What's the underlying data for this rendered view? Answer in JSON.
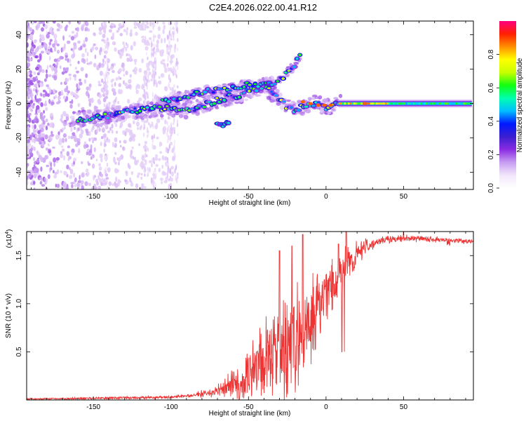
{
  "figure_title": "C2E4.2026.022.00.41.R12",
  "chart_data": [
    {
      "type": "heatmap",
      "title": "C2E4.2026.022.00.41.R12",
      "xlabel": "Height of straight line (km)",
      "ylabel": "Frequency (Hz)",
      "xlim": [
        -193,
        95
      ],
      "ylim": [
        -50,
        48
      ],
      "xticks": [
        -150,
        -100,
        -50,
        0,
        50
      ],
      "yticks": [
        -40,
        -20,
        0,
        20,
        40
      ],
      "xtick_labels": [
        "-150",
        "-100",
        "-50",
        "0",
        "50"
      ],
      "ytick_labels": [
        "-40",
        "-20",
        "0",
        "20",
        "40"
      ],
      "colorbar": {
        "label": "Normalized spectral amplitude",
        "range": [
          0,
          1
        ],
        "ticks": [
          0.0,
          0.2,
          0.4,
          0.6,
          0.8
        ],
        "tick_labels": [
          "0.0",
          "0.2",
          "0.4",
          "0.6",
          "0.8"
        ],
        "colors": [
          "#ffffff",
          "#f2e6fb",
          "#c89ef2",
          "#8a2be2",
          "#3a1fd0",
          "#0018ff",
          "#00bfff",
          "#00ffb0",
          "#10ff10",
          "#c8ff00",
          "#ffff00",
          "#ff9000",
          "#ff2000",
          "#ff0080"
        ]
      },
      "features": {
        "main_trace_points": [
          [
            -160,
            -9
          ],
          [
            -150,
            -9
          ],
          [
            -140,
            -7
          ],
          [
            -130,
            -5
          ],
          [
            -120,
            -4
          ],
          [
            -110,
            -3
          ],
          [
            -100,
            -3
          ],
          [
            -92,
            -4
          ],
          [
            -85,
            -3
          ],
          [
            -78,
            -1
          ],
          [
            -70,
            2
          ],
          [
            -62,
            4
          ],
          [
            -55,
            5
          ],
          [
            -48,
            8
          ],
          [
            -40,
            10
          ],
          [
            -35,
            6
          ],
          [
            -30,
            2
          ],
          [
            -25,
            -2
          ],
          [
            -20,
            -4
          ],
          [
            -15,
            -2
          ],
          [
            -10,
            0
          ],
          [
            -5,
            0
          ],
          [
            0,
            -2
          ],
          [
            5,
            -1
          ],
          [
            8,
            0
          ],
          [
            20,
            0
          ],
          [
            40,
            0
          ],
          [
            60,
            0
          ],
          [
            94,
            0
          ]
        ],
        "upper_branch_points": [
          [
            -110,
            1
          ],
          [
            -95,
            3
          ],
          [
            -80,
            7
          ],
          [
            -70,
            8
          ],
          [
            -60,
            9
          ],
          [
            -50,
            11
          ],
          [
            -44,
            11
          ],
          [
            -38,
            12
          ],
          [
            -33,
            12
          ],
          [
            -28,
            15
          ],
          [
            -24,
            19
          ],
          [
            -20,
            23
          ],
          [
            -16,
            29
          ]
        ],
        "lower_island_points": [
          [
            -70,
            -13
          ],
          [
            -62,
            -12
          ]
        ],
        "steady_band": {
          "x_start": 8,
          "x_end": 94,
          "freq": 0
        }
      }
    },
    {
      "type": "line",
      "xlabel": "Height of straight line (km)",
      "ylabel": "SNR (10 * v/v)",
      "y_scale_label": "(x10",
      "y_scale_exponent": "4",
      "xlim": [
        -193,
        95
      ],
      "ylim": [
        0,
        1.75
      ],
      "xticks": [
        -150,
        -100,
        -50,
        0,
        50
      ],
      "yticks": [
        0.5,
        1.0,
        1.5
      ],
      "xtick_labels": [
        "-150",
        "-100",
        "-50",
        "0",
        "50"
      ],
      "ytick_labels": [
        "0.5",
        "1.0",
        "1.5"
      ],
      "line_color": "#ee3333",
      "envelope": [
        {
          "x": -193,
          "base": 0.01,
          "noise": 0.01
        },
        {
          "x": -140,
          "base": 0.02,
          "noise": 0.02
        },
        {
          "x": -100,
          "base": 0.03,
          "noise": 0.02
        },
        {
          "x": -85,
          "base": 0.05,
          "noise": 0.03
        },
        {
          "x": -75,
          "base": 0.08,
          "noise": 0.08
        },
        {
          "x": -65,
          "base": 0.12,
          "noise": 0.15
        },
        {
          "x": -55,
          "base": 0.2,
          "noise": 0.3
        },
        {
          "x": -45,
          "base": 0.35,
          "noise": 0.45
        },
        {
          "x": -35,
          "base": 0.45,
          "noise": 0.6
        },
        {
          "x": -25,
          "base": 0.55,
          "noise": 0.75
        },
        {
          "x": -15,
          "base": 0.7,
          "noise": 0.8
        },
        {
          "x": -8,
          "base": 0.9,
          "noise": 0.55
        },
        {
          "x": 0,
          "base": 1.15,
          "noise": 0.45
        },
        {
          "x": 8,
          "base": 1.3,
          "noise": 0.35
        },
        {
          "x": 15,
          "base": 1.45,
          "noise": 0.25
        },
        {
          "x": 25,
          "base": 1.6,
          "noise": 0.12
        },
        {
          "x": 35,
          "base": 1.66,
          "noise": 0.06
        },
        {
          "x": 50,
          "base": 1.68,
          "noise": 0.05
        },
        {
          "x": 70,
          "base": 1.67,
          "noise": 0.04
        },
        {
          "x": 94,
          "base": 1.65,
          "noise": 0.03
        }
      ],
      "peaks": [
        [
          -15,
          1.72
        ],
        [
          13,
          1.75
        ],
        [
          50,
          1.75
        ],
        [
          -30,
          1.55
        ],
        [
          -22,
          1.6
        ],
        [
          8,
          1.62
        ]
      ]
    }
  ]
}
